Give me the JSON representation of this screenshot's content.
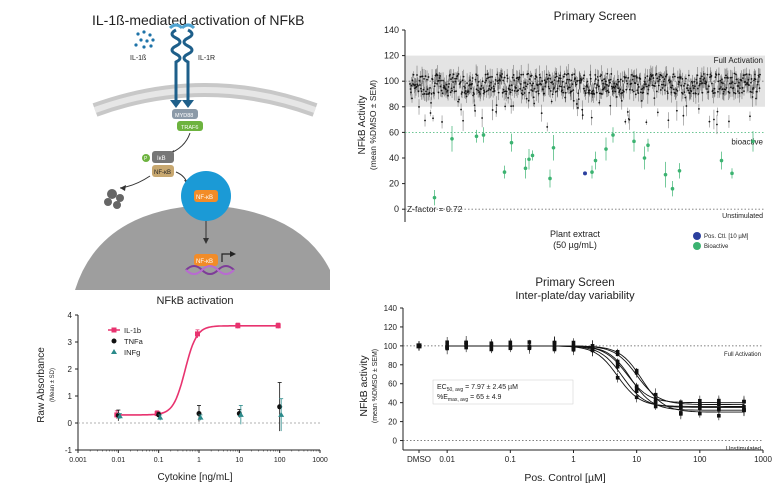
{
  "pathway": {
    "title": "IL-1ß-mediated activation of NFkB",
    "labels": {
      "ligand": "IL-1ß",
      "receptor": "IL-1R",
      "myd88": "MYD88",
      "traf6": "TRAF6",
      "ikb": "IκB",
      "p": "P",
      "nfkb_cyto": "NF-κB",
      "nfkb_nuc": "NF-κB",
      "nfkb_dna": "NF-κB"
    },
    "colors": {
      "myd88": "#8c9aa8",
      "traf6": "#6db33f",
      "ikb": "#7d6e9c",
      "nfkb": "#f28c28",
      "nucleus": "#1b9ad6",
      "membrane": "#bfbfbf",
      "cell": "#9e9e9e",
      "receptor": "#1e5f8a"
    }
  },
  "chart_data": [
    {
      "id": "nfkb_activation",
      "type": "scatter",
      "title": "NFkB activation",
      "xlabel": "Cytokine [ng/mL]",
      "ylabel": "Raw Absorbance",
      "ylabel_sub": "(Mean ± SD)",
      "xscale": "log",
      "xlim": [
        0.001,
        1000
      ],
      "ylim": [
        -1,
        4
      ],
      "xticks": [
        "0.001",
        "0.01",
        "0.1",
        "1",
        "10",
        "100",
        "1000"
      ],
      "yticks": [
        "-1",
        "0",
        "1",
        "2",
        "3",
        "4"
      ],
      "legend_position": "top-left",
      "series": [
        {
          "name": "IL-1b",
          "color": "#e8336f",
          "marker": "square",
          "x": [
            0.01,
            0.1,
            1,
            10,
            100
          ],
          "y": [
            0.3,
            0.35,
            3.3,
            3.6,
            3.6
          ],
          "err": [
            0.15,
            0.1,
            0.15,
            0.1,
            0.1
          ],
          "fit": "sigmoid"
        },
        {
          "name": "TNFa",
          "color": "#111111",
          "marker": "circle",
          "x": [
            0.01,
            0.1,
            1,
            10,
            100
          ],
          "y": [
            0.28,
            0.3,
            0.35,
            0.35,
            0.6
          ],
          "err": [
            0.2,
            0.1,
            0.3,
            0.15,
            0.9
          ]
        },
        {
          "name": "INFg",
          "color": "#2a8a8a",
          "marker": "triangle",
          "x": [
            0.01,
            0.1,
            1,
            10,
            100
          ],
          "y": [
            0.25,
            0.2,
            0.2,
            0.3,
            0.3
          ],
          "err": [
            0.1,
            0.1,
            0.1,
            0.35,
            0.6
          ]
        }
      ]
    },
    {
      "id": "primary_screen",
      "type": "scatter",
      "title": "Primary Screen",
      "xlabel": "Plant extract",
      "xlabel_sub": "(50 µg/mL)",
      "ylabel": "NFkB Activity",
      "ylabel_sub": "(mean %DMSO ± SEM)",
      "ylim": [
        -10,
        140
      ],
      "yticks": [
        "0",
        "20",
        "40",
        "60",
        "80",
        "100",
        "120",
        "140"
      ],
      "band": [
        80,
        120
      ],
      "reference_lines": [
        {
          "y": 100,
          "label": "Full Activation"
        },
        {
          "y": 60,
          "label": "bioactive"
        },
        {
          "y": 0,
          "label": "Unstimulated"
        }
      ],
      "annotation": "Z-factor = 0.72",
      "legend": [
        {
          "name": "Pos. Ctl. [10 µM]",
          "color": "#2b3f9e"
        },
        {
          "name": "Bioactive",
          "color": "#3cb371"
        }
      ],
      "point_count": 700,
      "inactive_mean": 98,
      "bioactive": [
        {
          "x": 0.07,
          "y": 9
        },
        {
          "x": 0.12,
          "y": 55
        },
        {
          "x": 0.19,
          "y": 57
        },
        {
          "x": 0.21,
          "y": 58
        },
        {
          "x": 0.27,
          "y": 29
        },
        {
          "x": 0.29,
          "y": 52
        },
        {
          "x": 0.33,
          "y": 32
        },
        {
          "x": 0.34,
          "y": 39
        },
        {
          "x": 0.35,
          "y": 42
        },
        {
          "x": 0.4,
          "y": 24
        },
        {
          "x": 0.41,
          "y": 48
        },
        {
          "x": 0.52,
          "y": 29
        },
        {
          "x": 0.53,
          "y": 38
        },
        {
          "x": 0.56,
          "y": 47
        },
        {
          "x": 0.58,
          "y": 58
        },
        {
          "x": 0.64,
          "y": 53
        },
        {
          "x": 0.67,
          "y": 40
        },
        {
          "x": 0.68,
          "y": 50
        },
        {
          "x": 0.73,
          "y": 27
        },
        {
          "x": 0.75,
          "y": 16
        },
        {
          "x": 0.77,
          "y": 30
        },
        {
          "x": 0.89,
          "y": 38
        },
        {
          "x": 0.92,
          "y": 28
        },
        {
          "x": 0.98,
          "y": 53
        }
      ],
      "positive_control": [
        {
          "x": 0.5,
          "y": 28
        }
      ]
    },
    {
      "id": "inter_plate",
      "type": "line",
      "title": "Primary Screen",
      "subtitle": "Inter-plate/day variability",
      "xlabel": "Pos. Control [µM]",
      "ylabel": "NFkB activity",
      "ylabel_sub": "(mean %DMSO ± SEM)",
      "xscale": "log",
      "xlim": [
        0.002,
        1000
      ],
      "ylim": [
        -10,
        140
      ],
      "xticks": [
        "DMSO",
        "0.01",
        "0.1",
        "1",
        "10",
        "100",
        "1000"
      ],
      "yticks": [
        "0",
        "20",
        "40",
        "60",
        "80",
        "100",
        "120",
        "140"
      ],
      "reference_lines": [
        {
          "y": 100,
          "label": "Full Activation"
        },
        {
          "y": 0,
          "label": "Unstimulated"
        }
      ],
      "annotation_ec50": "EC50, avg = 7.97 ± 2.45 µM",
      "annotation_emax": "%Emax, avg = 65 ± 4.9",
      "annotation_ec50_prefix": "EC",
      "annotation_ec50_sub": "50, avg",
      "annotation_ec50_value": " = 7.97 ± 2.45  µM",
      "annotation_emax_prefix": "%E",
      "annotation_emax_sub": "max, avg",
      "annotation_emax_value": " = 65 ± 4.9",
      "dmso": {
        "y": 100,
        "err": 5
      },
      "x": [
        0.01,
        0.02,
        0.05,
        0.1,
        0.2,
        0.5,
        1,
        2,
        5,
        10,
        20,
        50,
        100,
        200,
        500
      ],
      "curves": [
        {
          "ec50": 6,
          "bottom": 35
        },
        {
          "ec50": 8,
          "bottom": 32
        },
        {
          "ec50": 10,
          "bottom": 38
        },
        {
          "ec50": 7,
          "bottom": 40
        },
        {
          "ec50": 12,
          "bottom": 30
        },
        {
          "ec50": 5,
          "bottom": 36
        }
      ]
    }
  ]
}
